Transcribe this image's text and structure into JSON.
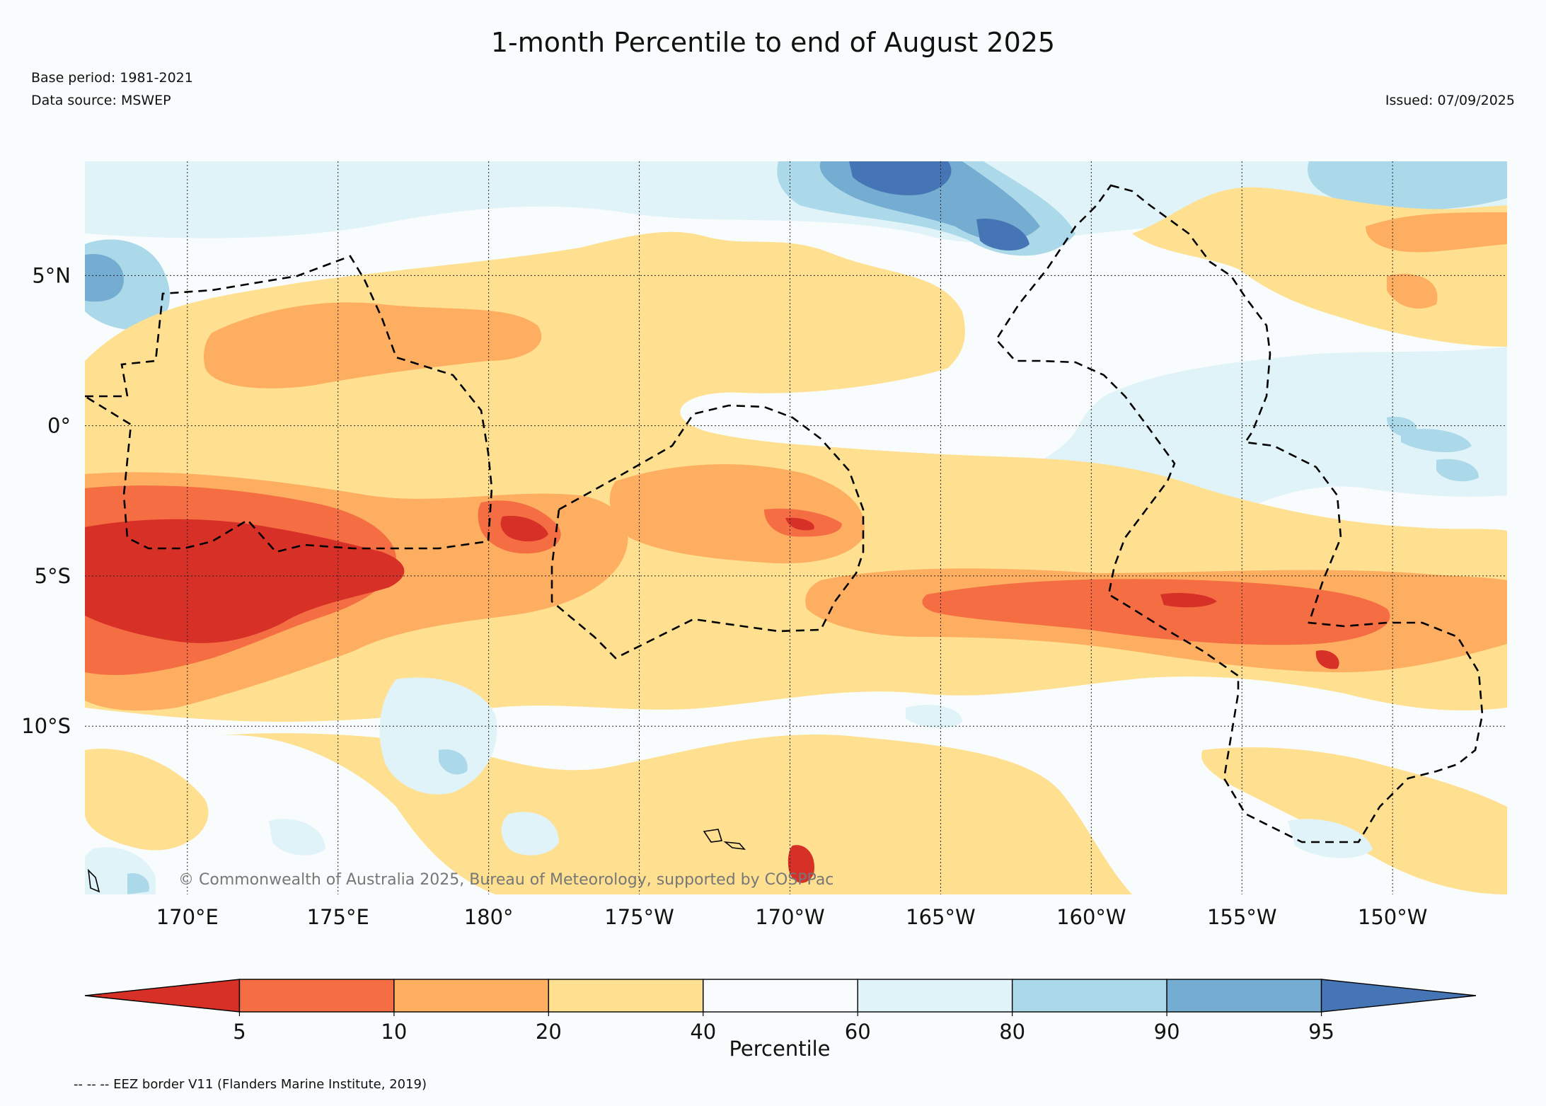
{
  "title": "1-month Percentile to end of August 2025",
  "base_period": "Base period: 1981-2021",
  "data_source": "Data source: MSWEP",
  "issued": "Issued: 07/09/2025",
  "copyright": "© Commonwealth of Australia 2025, Bureau of Meteorology, supported by COSPPac",
  "footnote": "-- -- -- EEZ border V11 (Flanders Marine Institute, 2019)",
  "map": {
    "lon_range": [
      166.6,
      213.8
    ],
    "lat_range": [
      -15.6,
      8.8
    ],
    "x_ticks": [
      {
        "lon": 170,
        "label": "170°E"
      },
      {
        "lon": 175,
        "label": "175°E"
      },
      {
        "lon": 180,
        "label": "180°"
      },
      {
        "lon": 185,
        "label": "175°W"
      },
      {
        "lon": 190,
        "label": "170°W"
      },
      {
        "lon": 195,
        "label": "165°W"
      },
      {
        "lon": 200,
        "label": "160°W"
      },
      {
        "lon": 205,
        "label": "155°W"
      },
      {
        "lon": 210,
        "label": "150°W"
      }
    ],
    "y_ticks": [
      {
        "lat": 5,
        "label": "5°N"
      },
      {
        "lat": 0,
        "label": "0°"
      },
      {
        "lat": -5,
        "label": "5°S"
      },
      {
        "lat": -10,
        "label": "10°S"
      }
    ],
    "colors": {
      "lt5": "#d73027",
      "p5_10": "#f46d43",
      "p10_20": "#fdae61",
      "p20_40": "#fee090",
      "p40_60": "#f8fcfd",
      "p60_80": "#e0f3f8",
      "p80_90": "#abd9e9",
      "p90_95": "#74add1",
      "gt95": "#4575b4"
    }
  },
  "colorbar": {
    "label": "Percentile",
    "ticks": [
      "5",
      "10",
      "20",
      "40",
      "60",
      "80",
      "90",
      "95"
    ],
    "colors": [
      "#d73027",
      "#f46d43",
      "#fdae61",
      "#fee090",
      "#f8fcfd",
      "#e0f3f8",
      "#abd9e9",
      "#74add1",
      "#4575b4"
    ]
  }
}
